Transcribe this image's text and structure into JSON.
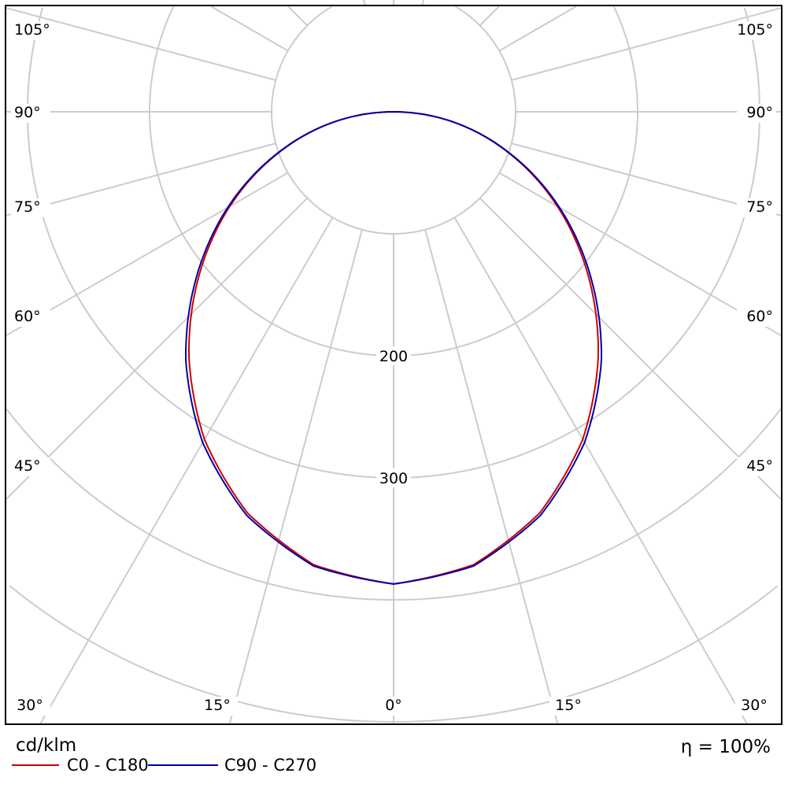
{
  "chart_data": {
    "type": "polar",
    "unit_label": "cd/klm",
    "efficiency_label": "η = 100%",
    "radial_ticks": [
      100,
      200,
      300,
      400,
      500,
      600
    ],
    "radial_tick_labels_shown": [
      "200",
      "300"
    ],
    "angle_labels": {
      "left": [
        "105°",
        "90°",
        "75°",
        "60°",
        "45°",
        "30°"
      ],
      "bottom": [
        "30°",
        "15°",
        "0°",
        "15°",
        "30°"
      ],
      "right": [
        "105°",
        "90°",
        "75°",
        "60°",
        "45°",
        "30°"
      ]
    },
    "gamma_deg": [
      0,
      10,
      20,
      30,
      40,
      50,
      60,
      70,
      80,
      90
    ],
    "series": [
      {
        "name": "C0 - C180",
        "color": "#cc0000",
        "values": [
          387,
          377,
          350,
          310,
          261,
          208,
          155,
          102,
          51,
          0
        ]
      },
      {
        "name": "C90 - C270",
        "color": "#0000aa",
        "values": [
          387,
          378,
          352,
          313,
          265,
          211,
          157,
          103,
          51,
          0
        ]
      }
    ],
    "grid": true,
    "legend": "bottom-left"
  }
}
